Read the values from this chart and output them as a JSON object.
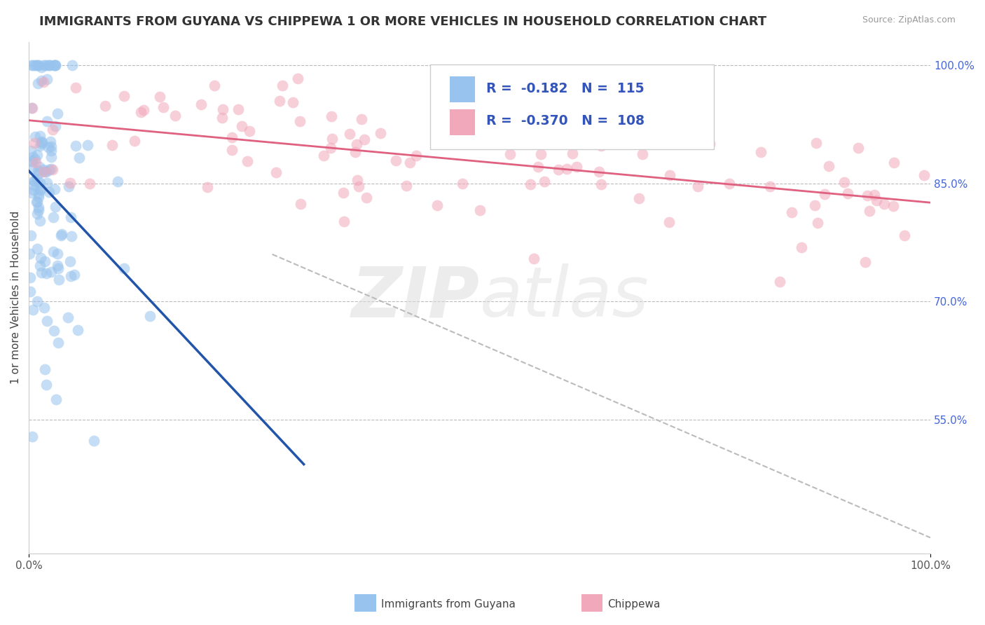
{
  "title": "IMMIGRANTS FROM GUYANA VS CHIPPEWA 1 OR MORE VEHICLES IN HOUSEHOLD CORRELATION CHART",
  "source": "Source: ZipAtlas.com",
  "ylabel": "1 or more Vehicles in Household",
  "xlim": [
    0.0,
    1.0
  ],
  "ylim": [
    0.38,
    1.03
  ],
  "right_yticks": [
    1.0,
    0.85,
    0.7,
    0.55
  ],
  "right_yticklabels": [
    "100.0%",
    "85.0%",
    "70.0%",
    "55.0%"
  ],
  "legend_blue_r": "-0.182",
  "legend_blue_n": "115",
  "legend_pink_r": "-0.370",
  "legend_pink_n": "108",
  "legend_label_blue": "Immigrants from Guyana",
  "legend_label_pink": "Chippewa",
  "blue_color": "#97C3EE",
  "pink_color": "#F2A8BB",
  "trend_blue_color": "#2255AA",
  "trend_pink_color": "#E06080",
  "watermark_zip": "ZIP",
  "watermark_atlas": "atlas",
  "background_color": "#FFFFFF",
  "grid_color": "#BBBBBB",
  "title_fontsize": 13,
  "axis_label_fontsize": 11,
  "tick_fontsize": 11
}
